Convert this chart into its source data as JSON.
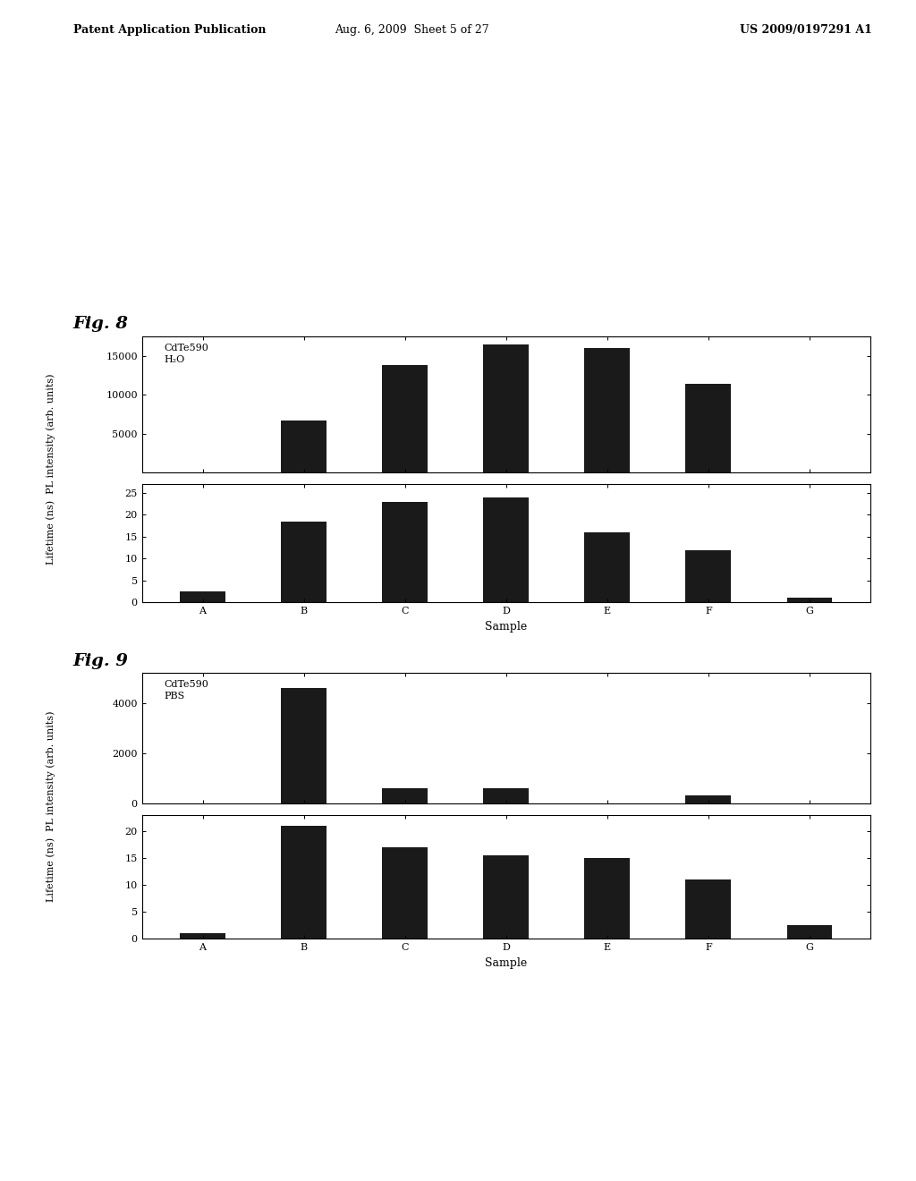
{
  "fig8_label": "Fig. 8",
  "fig9_label": "Fig. 9",
  "header_left": "Patent Application Publication",
  "header_mid": "Aug. 6, 2009  Sheet 5 of 27",
  "header_right": "US 2009/0197291 A1",
  "categories": [
    "A",
    "B",
    "C",
    "D",
    "E",
    "F",
    "G"
  ],
  "xlabel": "Sample",
  "fig8_pl_values": [
    0,
    6700,
    13800,
    16500,
    16000,
    11400,
    0
  ],
  "fig8_pl_yticks": [
    5000,
    10000,
    15000
  ],
  "fig8_pl_ylim": [
    0,
    17500
  ],
  "fig8_pl_legend": "CdTe590\nH₂O",
  "fig8_lt_values": [
    2.5,
    18.5,
    23.0,
    24.0,
    16.0,
    12.0,
    1.0
  ],
  "fig8_lt_yticks": [
    0,
    5,
    10,
    15,
    20,
    25
  ],
  "fig8_lt_ylim": [
    0,
    27
  ],
  "fig9_pl_values": [
    0,
    4600,
    600,
    600,
    0,
    300,
    0
  ],
  "fig9_pl_yticks": [
    0,
    2000,
    4000
  ],
  "fig9_pl_ylim": [
    0,
    5200
  ],
  "fig9_pl_legend": "CdTe590\nPBS",
  "fig9_lt_values": [
    1.0,
    21.0,
    17.0,
    15.5,
    15.0,
    11.0,
    2.5
  ],
  "fig9_lt_yticks": [
    0,
    5,
    10,
    15,
    20
  ],
  "fig9_lt_ylim": [
    0,
    23
  ],
  "combined_ylabel": "Lifetime (ns)  PL intensity (arb. units)",
  "ylabel_lifetime": "Lifetime (ns)",
  "ylabel_pl": "PL intensity (arb. units)",
  "bar_color": "#1a1a1a",
  "bar_width": 0.45,
  "bg_color": "#ffffff",
  "font_size": 8,
  "tick_label_size": 8,
  "axis_label_size": 8,
  "fig_label_size": 14,
  "header_font_size": 9
}
